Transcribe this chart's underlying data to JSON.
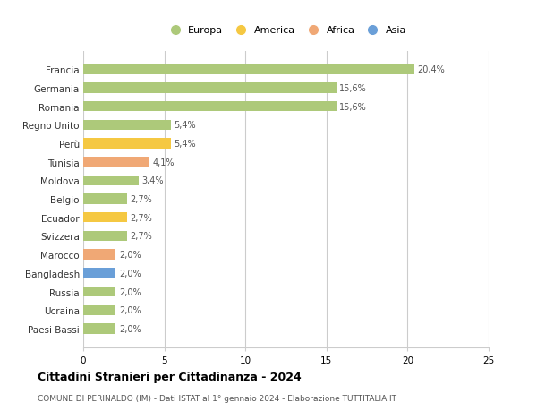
{
  "countries": [
    "Francia",
    "Germania",
    "Romania",
    "Regno Unito",
    "Perù",
    "Tunisia",
    "Moldova",
    "Belgio",
    "Ecuador",
    "Svizzera",
    "Marocco",
    "Bangladesh",
    "Russia",
    "Ucraina",
    "Paesi Bassi"
  ],
  "values": [
    20.4,
    15.6,
    15.6,
    5.4,
    5.4,
    4.1,
    3.4,
    2.7,
    2.7,
    2.7,
    2.0,
    2.0,
    2.0,
    2.0,
    2.0
  ],
  "labels": [
    "20,4%",
    "15,6%",
    "15,6%",
    "5,4%",
    "5,4%",
    "4,1%",
    "3,4%",
    "2,7%",
    "2,7%",
    "2,7%",
    "2,0%",
    "2,0%",
    "2,0%",
    "2,0%",
    "2,0%"
  ],
  "colors": [
    "#adc97a",
    "#adc97a",
    "#adc97a",
    "#adc97a",
    "#f5c842",
    "#f0a875",
    "#adc97a",
    "#adc97a",
    "#f5c842",
    "#adc97a",
    "#f0a875",
    "#6a9fd8",
    "#adc97a",
    "#adc97a",
    "#adc97a"
  ],
  "legend_labels": [
    "Europa",
    "America",
    "Africa",
    "Asia"
  ],
  "legend_colors": [
    "#adc97a",
    "#f5c842",
    "#f0a875",
    "#6a9fd8"
  ],
  "title": "Cittadini Stranieri per Cittadinanza - 2024",
  "subtitle": "COMUNE DI PERINALDO (IM) - Dati ISTAT al 1° gennaio 2024 - Elaborazione TUTTITALIA.IT",
  "xlim": [
    0,
    25
  ],
  "xticks": [
    0,
    5,
    10,
    15,
    20,
    25
  ],
  "background_color": "#ffffff",
  "grid_color": "#cccccc",
  "bar_height": 0.55
}
